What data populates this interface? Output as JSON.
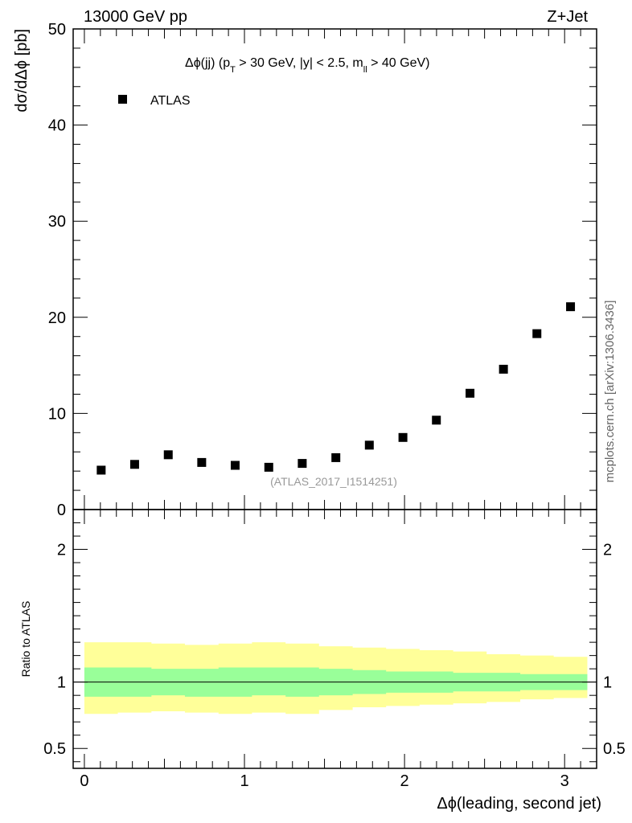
{
  "header": {
    "left": "13000 GeV pp",
    "right": "Z+Jet"
  },
  "side_label": "mcplots.cern.ch [arXiv:1306.3436]",
  "chart_data": [
    {
      "type": "scatter",
      "title": "Δϕ(jj) (p_T > 30 GeV, |y| < 2.5, m_ll > 40 GeV)",
      "title_parts": {
        "a": "Δϕ(jj) (p",
        "a_sub": "T",
        "b": " > 30 GeV, |y| < 2.5, m",
        "b_sub": "ll",
        "c": " > 40 GeV)"
      },
      "ylabel": "dσ/dΔϕ [pb]",
      "ylim": [
        0,
        50
      ],
      "xlim": [
        -0.07,
        3.2
      ],
      "yticks": [
        0,
        10,
        20,
        30,
        40,
        50
      ],
      "yticklabels": [
        "0",
        "10",
        "20",
        "30",
        "40",
        "50"
      ],
      "legend": {
        "placement": "top-left",
        "entries": [
          "ATLAS"
        ]
      },
      "annotation": "(ATLAS_2017_I1514251)",
      "series": [
        {
          "name": "ATLAS",
          "marker": "square",
          "color": "#000000",
          "x": [
            0.105,
            0.314,
            0.524,
            0.733,
            0.942,
            1.152,
            1.361,
            1.571,
            1.78,
            1.99,
            2.199,
            2.409,
            2.618,
            2.827,
            3.037
          ],
          "y": [
            4.1,
            4.7,
            5.7,
            4.9,
            4.6,
            4.4,
            4.8,
            5.4,
            6.7,
            7.5,
            9.3,
            12.1,
            14.6,
            18.3,
            21.1
          ]
        }
      ]
    },
    {
      "type": "area",
      "ylabel": "Ratio to ATLAS",
      "xlabel": "Δϕ(leading, second jet)",
      "ylim": [
        0.35,
        2.3
      ],
      "xlim": [
        -0.07,
        3.2
      ],
      "xticks": [
        0,
        1,
        2,
        3
      ],
      "xticklabels": [
        "0",
        "1",
        "2",
        "3"
      ],
      "yticks": [
        0.5,
        1,
        2
      ],
      "yticklabels": [
        "0.5",
        "1",
        "2"
      ],
      "reference_line": 1,
      "bin_edges": [
        0.0,
        0.209,
        0.419,
        0.628,
        0.838,
        1.047,
        1.257,
        1.466,
        1.676,
        1.885,
        2.094,
        2.304,
        2.513,
        2.723,
        2.932,
        3.142
      ],
      "colors": {
        "outer_band": "#ffff99",
        "inner_band": "#99ff99",
        "line": "#000000"
      },
      "series": [
        {
          "band": "outer",
          "low": [
            0.76,
            0.77,
            0.78,
            0.77,
            0.76,
            0.77,
            0.76,
            0.79,
            0.81,
            0.82,
            0.83,
            0.84,
            0.85,
            0.87,
            0.88
          ],
          "high": [
            1.3,
            1.3,
            1.29,
            1.28,
            1.29,
            1.3,
            1.29,
            1.27,
            1.26,
            1.25,
            1.24,
            1.23,
            1.21,
            1.2,
            1.19
          ]
        },
        {
          "band": "inner",
          "low": [
            0.89,
            0.89,
            0.9,
            0.89,
            0.89,
            0.9,
            0.89,
            0.9,
            0.91,
            0.92,
            0.92,
            0.93,
            0.93,
            0.94,
            0.94
          ],
          "high": [
            1.11,
            1.11,
            1.1,
            1.1,
            1.11,
            1.11,
            1.11,
            1.1,
            1.09,
            1.08,
            1.08,
            1.07,
            1.07,
            1.06,
            1.06
          ]
        }
      ]
    }
  ]
}
